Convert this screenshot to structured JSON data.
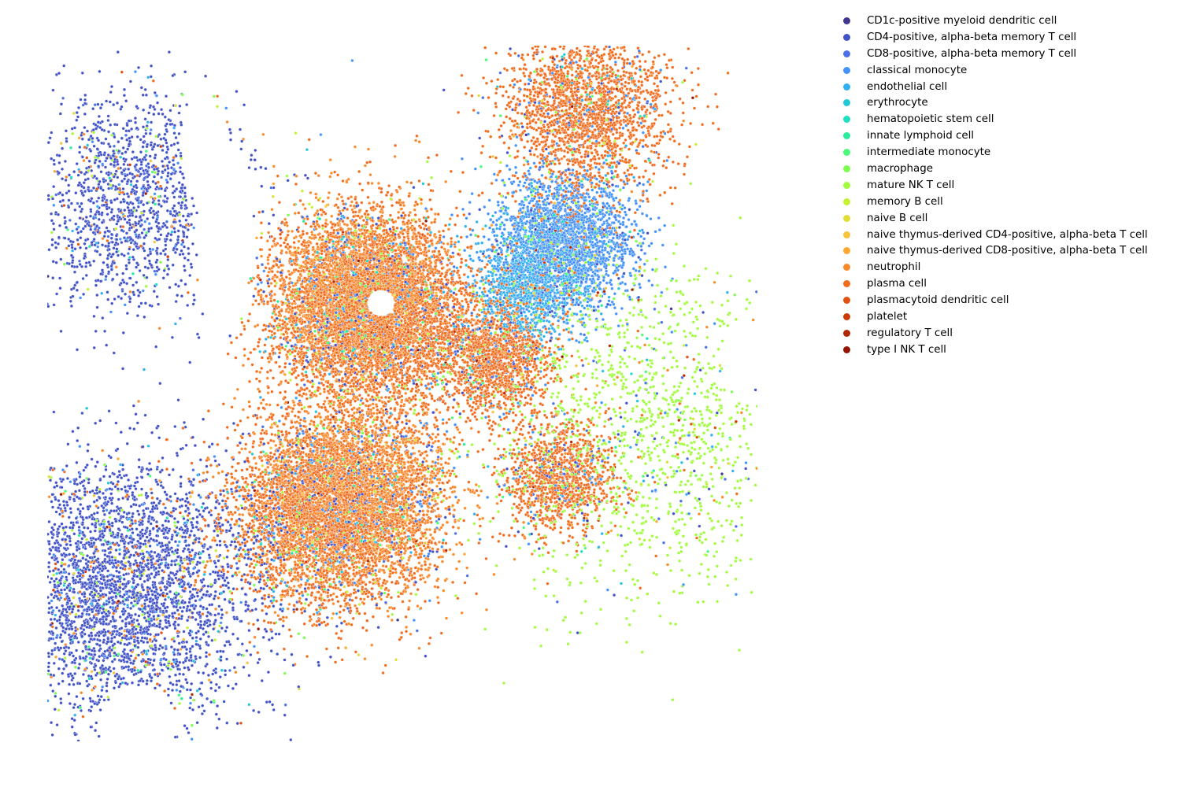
{
  "chart_data": {
    "type": "scatter",
    "title": "",
    "xlabel": "",
    "ylabel": "",
    "axes_visible": false,
    "grid": false,
    "legend_position": "right",
    "marker": "small filled circle with thin white edge",
    "categories": [
      {
        "name": "CD1c-positive myeloid dendritic cell",
        "color": "#3e378f",
        "weight": 0.008
      },
      {
        "name": "CD4-positive, alpha-beta memory T cell",
        "color": "#4253c8",
        "weight": 0.14
      },
      {
        "name": "CD8-positive, alpha-beta memory T cell",
        "color": "#4a72e6",
        "weight": 0.12
      },
      {
        "name": "classical monocyte",
        "color": "#4493fa",
        "weight": 0.12
      },
      {
        "name": "endothelial cell",
        "color": "#31b1f1",
        "weight": 0.05
      },
      {
        "name": "erythrocyte",
        "color": "#22c8d8",
        "weight": 0.03
      },
      {
        "name": "hematopoietic stem cell",
        "color": "#1fe0c0",
        "weight": 0.015
      },
      {
        "name": "innate lymphoid cell",
        "color": "#28ee9c",
        "weight": 0.02
      },
      {
        "name": "intermediate monocyte",
        "color": "#4cf978",
        "weight": 0.03
      },
      {
        "name": "macrophage",
        "color": "#7cfd50",
        "weight": 0.05
      },
      {
        "name": "mature NK T cell",
        "color": "#a2fc3e",
        "weight": 0.06
      },
      {
        "name": "memory B cell",
        "color": "#c3f134",
        "weight": 0.06
      },
      {
        "name": "naive B cell",
        "color": "#e1dd37",
        "weight": 0.02
      },
      {
        "name": "naive thymus-derived CD4-positive, alpha-beta T cell",
        "color": "#f6c33a",
        "weight": 0.015
      },
      {
        "name": "naive thymus-derived CD8-positive, alpha-beta T cell",
        "color": "#fea832",
        "weight": 0.03
      },
      {
        "name": "neutrophil",
        "color": "#fa8a2a",
        "weight": 0.08
      },
      {
        "name": "plasma cell",
        "color": "#f26c1e",
        "weight": 0.1
      },
      {
        "name": "plasmacytoid dendritic cell",
        "color": "#e25111",
        "weight": 0.015
      },
      {
        "name": "platelet",
        "color": "#cd3907",
        "weight": 0.01
      },
      {
        "name": "regulatory T cell",
        "color": "#b22603",
        "weight": 0.01
      },
      {
        "name": "type I NK T cell",
        "color": "#951503",
        "weight": 0.01
      }
    ],
    "clusters": [
      {
        "category": "plasma cell",
        "x": 0.46,
        "y": 0.38,
        "spread": 0.07,
        "share": 0.06
      },
      {
        "category": "neutrophil",
        "x": 0.44,
        "y": 0.36,
        "spread": 0.06,
        "share": 0.04
      },
      {
        "category": "plasma cell",
        "x": 0.4,
        "y": 0.67,
        "spread": 0.07,
        "share": 0.05
      },
      {
        "category": "neutrophil",
        "x": 0.43,
        "y": 0.65,
        "spread": 0.07,
        "share": 0.04
      },
      {
        "category": "plasma cell",
        "x": 0.76,
        "y": 0.09,
        "spread": 0.06,
        "share": 0.03
      },
      {
        "category": "plasma cell",
        "x": 0.63,
        "y": 0.45,
        "spread": 0.04,
        "share": 0.02
      },
      {
        "category": "plasma cell",
        "x": 0.72,
        "y": 0.62,
        "spread": 0.04,
        "share": 0.015
      },
      {
        "category": "classical monocyte",
        "x": 0.73,
        "y": 0.28,
        "spread": 0.05,
        "share": 0.03
      },
      {
        "category": "endothelial cell",
        "x": 0.68,
        "y": 0.34,
        "spread": 0.04,
        "share": 0.015
      },
      {
        "category": "CD4-positive, alpha-beta memory T cell",
        "x": 0.1,
        "y": 0.78,
        "spread": 0.1,
        "share": 0.05
      },
      {
        "category": "CD4-positive, alpha-beta memory T cell",
        "x": 0.12,
        "y": 0.22,
        "spread": 0.08,
        "share": 0.02
      },
      {
        "category": "mature NK T cell",
        "x": 0.85,
        "y": 0.55,
        "spread": 0.12,
        "share": 0.02
      }
    ],
    "empty_regions": [
      {
        "x": 0.25,
        "y": 0.27,
        "rx": 0.04,
        "ry": 0.13
      },
      {
        "x": 0.22,
        "y": 0.15,
        "rx": 0.03,
        "ry": 0.08
      },
      {
        "x": 0.9,
        "y": 0.88,
        "rx": 0.06,
        "ry": 0.05
      },
      {
        "x": 0.98,
        "y": 0.45,
        "rx": 0.03,
        "ry": 0.05
      },
      {
        "x": 0.13,
        "y": 0.97,
        "rx": 0.05,
        "ry": 0.05
      },
      {
        "x": 0.47,
        "y": 0.37,
        "rx": 0.02,
        "ry": 0.02
      }
    ],
    "point_count": 30000
  }
}
